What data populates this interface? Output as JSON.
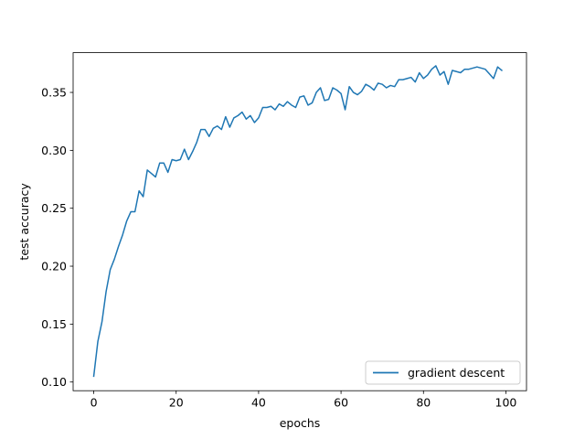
{
  "chart_data": {
    "type": "line",
    "title": "",
    "xlabel": "epochs",
    "ylabel": "test accuracy",
    "xlim": [
      -5,
      105
    ],
    "ylim": [
      0.0925,
      0.3843
    ],
    "x_ticks": [
      0,
      20,
      40,
      60,
      80,
      100
    ],
    "y_ticks": [
      0.1,
      0.15,
      0.2,
      0.25,
      0.3,
      0.35
    ],
    "grid": false,
    "legend_position": "lower right",
    "series": [
      {
        "name": "gradient descent",
        "color": "#1f77b4",
        "x": [
          0,
          1,
          2,
          3,
          4,
          5,
          6,
          7,
          8,
          9,
          10,
          11,
          12,
          13,
          14,
          15,
          16,
          17,
          18,
          19,
          20,
          21,
          22,
          23,
          24,
          25,
          26,
          27,
          28,
          29,
          30,
          31,
          32,
          33,
          34,
          35,
          36,
          37,
          38,
          39,
          40,
          41,
          42,
          43,
          44,
          45,
          46,
          47,
          48,
          49,
          50,
          51,
          52,
          53,
          54,
          55,
          56,
          57,
          58,
          59,
          60,
          61,
          62,
          63,
          64,
          65,
          66,
          67,
          68,
          69,
          70,
          71,
          72,
          73,
          74,
          75,
          76,
          77,
          78,
          79,
          80,
          81,
          82,
          83,
          84,
          85,
          86,
          87,
          88,
          89,
          90,
          91,
          92,
          93,
          94,
          95,
          96,
          97,
          98,
          99
        ],
        "y": [
          0.105,
          0.135,
          0.152,
          0.178,
          0.197,
          0.206,
          0.217,
          0.227,
          0.239,
          0.247,
          0.247,
          0.265,
          0.26,
          0.283,
          0.28,
          0.277,
          0.289,
          0.289,
          0.281,
          0.292,
          0.291,
          0.292,
          0.301,
          0.292,
          0.299,
          0.307,
          0.318,
          0.318,
          0.312,
          0.319,
          0.321,
          0.318,
          0.329,
          0.32,
          0.328,
          0.33,
          0.333,
          0.327,
          0.33,
          0.324,
          0.328,
          0.337,
          0.337,
          0.338,
          0.335,
          0.34,
          0.338,
          0.342,
          0.339,
          0.337,
          0.346,
          0.347,
          0.339,
          0.341,
          0.35,
          0.354,
          0.343,
          0.344,
          0.354,
          0.352,
          0.349,
          0.335,
          0.355,
          0.35,
          0.348,
          0.351,
          0.357,
          0.355,
          0.352,
          0.358,
          0.357,
          0.354,
          0.356,
          0.355,
          0.361,
          0.361,
          0.362,
          0.363,
          0.359,
          0.367,
          0.362,
          0.365,
          0.37,
          0.373,
          0.365,
          0.368,
          0.357,
          0.369,
          0.368,
          0.367,
          0.37,
          0.37,
          0.371,
          0.372,
          0.371,
          0.37,
          0.366,
          0.362,
          0.372,
          0.369
        ]
      }
    ]
  }
}
